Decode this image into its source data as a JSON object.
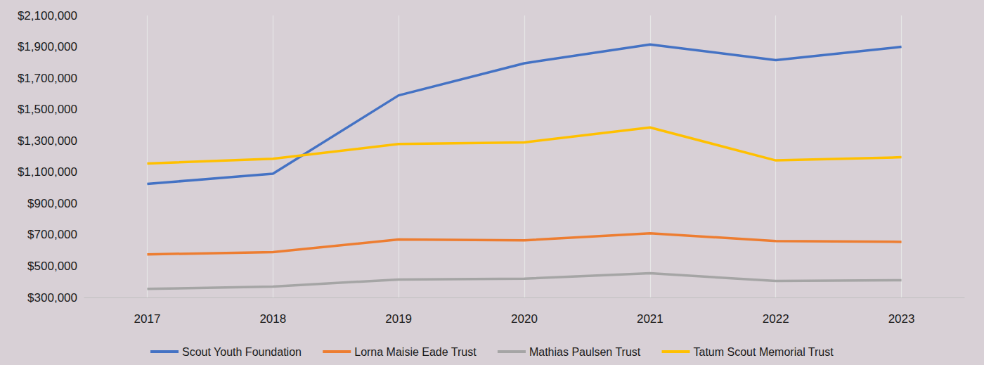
{
  "chart_data": {
    "type": "line",
    "categories": [
      "2017",
      "2018",
      "2019",
      "2020",
      "2021",
      "2022",
      "2023"
    ],
    "series": [
      {
        "name": "Scout Youth Foundation",
        "color": "#4472c4",
        "values": [
          1025000,
          1090000,
          1590000,
          1795000,
          1915000,
          1815000,
          1900000
        ]
      },
      {
        "name": "Lorna Maisie Eade Trust",
        "color": "#ed7d31",
        "values": [
          575000,
          590000,
          670000,
          665000,
          710000,
          660000,
          655000
        ]
      },
      {
        "name": "Mathias Paulsen Trust",
        "color": "#a5a5a5",
        "values": [
          355000,
          370000,
          415000,
          420000,
          455000,
          405000,
          410000
        ]
      },
      {
        "name": "Tatum Scout Memorial Trust",
        "color": "#ffc000",
        "values": [
          1155000,
          1185000,
          1280000,
          1290000,
          1385000,
          1175000,
          1195000
        ]
      }
    ],
    "ylim": [
      300000,
      2100000
    ],
    "yticks": [
      {
        "value": 300000,
        "label": "$300,000"
      },
      {
        "value": 500000,
        "label": "$500,000"
      },
      {
        "value": 700000,
        "label": "$700,000"
      },
      {
        "value": 900000,
        "label": "$900,000"
      },
      {
        "value": 1100000,
        "label": "$1,100,000"
      },
      {
        "value": 1300000,
        "label": "$1,300,000"
      },
      {
        "value": 1500000,
        "label": "$1,500,000"
      },
      {
        "value": 1700000,
        "label": "$1,700,000"
      },
      {
        "value": 1900000,
        "label": "$1,900,000"
      },
      {
        "value": 2100000,
        "label": "$2,100,000"
      }
    ],
    "grid": true,
    "legend": "bottom"
  }
}
